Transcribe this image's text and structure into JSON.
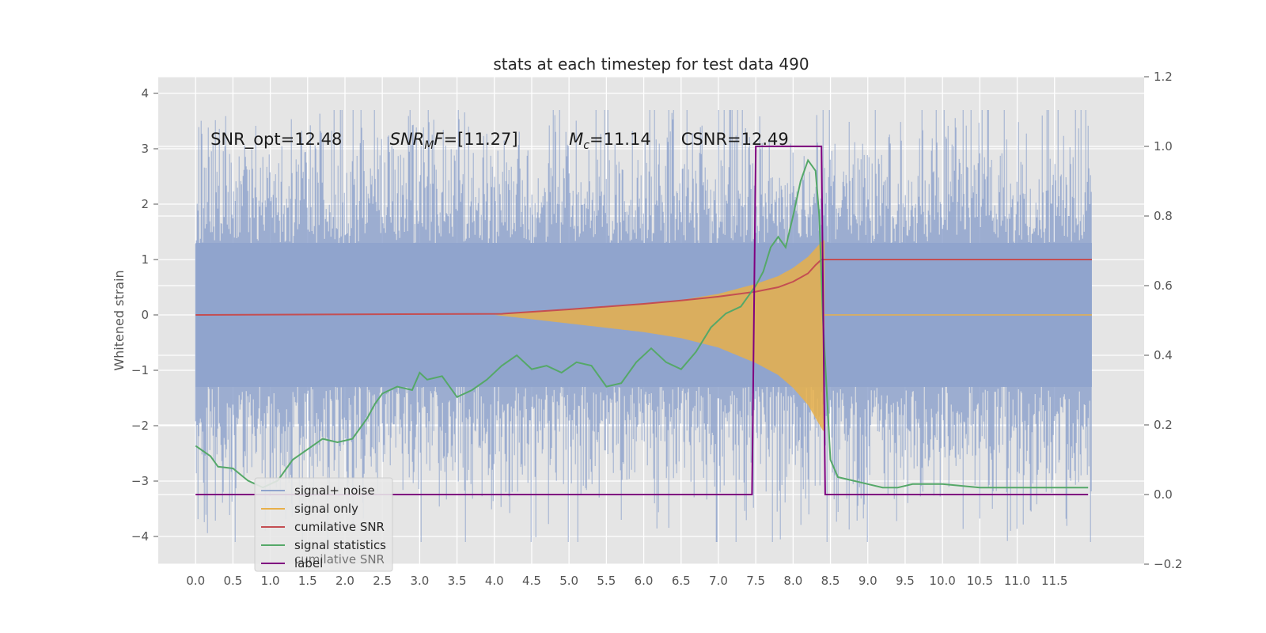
{
  "chart_data": {
    "type": "line",
    "title": "stats at each timestep for test data 490",
    "ylabel": "Whitened strain",
    "xlabel": "",
    "xlim": [
      -0.5,
      12.7
    ],
    "ylim": [
      -4.5,
      4.3
    ],
    "y2lim": [
      -0.2,
      1.2
    ],
    "grid": true,
    "legend_position": "lower-left",
    "x_ticks": [
      "0.0",
      "0.5",
      "1.0",
      "1.5",
      "2.0",
      "2.5",
      "3.0",
      "3.5",
      "4.0",
      "4.5",
      "5.0",
      "5.5",
      "6.0",
      "6.5",
      "7.0",
      "7.5",
      "8.0",
      "8.5",
      "9.0",
      "9.5",
      "10.0",
      "10.5",
      "11.0",
      "11.5"
    ],
    "y_ticks": [
      "4",
      "3",
      "2",
      "1",
      "0",
      "−1",
      "−2",
      "−3",
      "−4"
    ],
    "y2_ticks": [
      "1.2",
      "1.0",
      "0.8",
      "0.6",
      "0.4",
      "0.2",
      "0.0",
      "−0.2"
    ],
    "annotations": [
      {
        "text": "SNR_opt=12.48",
        "x": 0.2,
        "y": 3.1
      },
      {
        "text": "SNR",
        "sub": "M",
        "tail": "F=[11.27]",
        "x": 2.6,
        "y": 3.1
      },
      {
        "text": "M",
        "sub": "c",
        "tail": "=11.14",
        "x": 5.0,
        "y": 3.1
      },
      {
        "text": "CSNR=12.49",
        "x": 6.5,
        "y": 3.1
      }
    ],
    "series": [
      {
        "name": "signal+ noise",
        "color": "#8fa3cc",
        "axis": "left",
        "style": "noise",
        "x_range": [
          0,
          12.0
        ],
        "typical_band": [
          -1.9,
          1.9
        ],
        "extreme_band": [
          -4.1,
          3.7
        ]
      },
      {
        "name": "signal only",
        "color": "#e8b04a",
        "axis": "left",
        "style": "chirp",
        "x": [
          4.0,
          5.0,
          6.0,
          6.5,
          7.0,
          7.5,
          7.8,
          8.0,
          8.2,
          8.3,
          8.4,
          12.0
        ],
        "envelope": [
          0.0,
          0.1,
          0.2,
          0.27,
          0.38,
          0.56,
          0.7,
          0.85,
          1.05,
          1.2,
          1.35,
          0.0
        ]
      },
      {
        "name": "cumilative SNR",
        "color": "#c44e52",
        "axis": "left",
        "x": [
          0,
          4.1,
          5.0,
          6.0,
          6.5,
          7.0,
          7.5,
          7.8,
          8.0,
          8.2,
          8.3,
          8.38,
          12.0
        ],
        "y": [
          0,
          0.02,
          0.1,
          0.2,
          0.26,
          0.33,
          0.42,
          0.5,
          0.6,
          0.75,
          0.9,
          1.0,
          1.0
        ]
      },
      {
        "name": "signal statistics",
        "color": "#55a868",
        "axis": "right",
        "x": [
          0.0,
          0.1,
          0.2,
          0.3,
          0.5,
          0.7,
          0.9,
          1.1,
          1.3,
          1.5,
          1.7,
          1.9,
          2.1,
          2.3,
          2.4,
          2.5,
          2.7,
          2.9,
          3.0,
          3.1,
          3.3,
          3.5,
          3.7,
          3.9,
          4.1,
          4.3,
          4.5,
          4.7,
          4.9,
          5.1,
          5.3,
          5.5,
          5.7,
          5.9,
          6.1,
          6.3,
          6.5,
          6.7,
          6.9,
          7.1,
          7.3,
          7.5,
          7.6,
          7.7,
          7.8,
          7.9,
          8.0,
          8.1,
          8.2,
          8.3,
          8.35,
          8.4,
          8.5,
          8.6,
          8.8,
          9.0,
          9.2,
          9.4,
          9.6,
          10.0,
          10.5,
          11.0,
          11.5,
          11.95
        ],
        "y": [
          0.14,
          0.125,
          0.11,
          0.08,
          0.075,
          0.04,
          0.02,
          0.04,
          0.1,
          0.13,
          0.16,
          0.15,
          0.16,
          0.22,
          0.26,
          0.29,
          0.31,
          0.3,
          0.35,
          0.33,
          0.34,
          0.28,
          0.3,
          0.33,
          0.37,
          0.4,
          0.36,
          0.37,
          0.35,
          0.38,
          0.37,
          0.31,
          0.32,
          0.38,
          0.42,
          0.38,
          0.36,
          0.41,
          0.48,
          0.52,
          0.54,
          0.6,
          0.64,
          0.71,
          0.74,
          0.71,
          0.8,
          0.9,
          0.96,
          0.93,
          0.8,
          0.5,
          0.1,
          0.05,
          0.04,
          0.03,
          0.02,
          0.02,
          0.03,
          0.03,
          0.02,
          0.02,
          0.02,
          0.02
        ]
      },
      {
        "name": "label",
        "color": "#800080",
        "axis": "right",
        "x": [
          0.0,
          7.45,
          7.5,
          8.38,
          8.43,
          11.95
        ],
        "y": [
          0.0,
          0.0,
          1.0,
          1.0,
          0.0,
          0.0
        ]
      }
    ],
    "hidden_legend_text": "cumilative SNR"
  }
}
